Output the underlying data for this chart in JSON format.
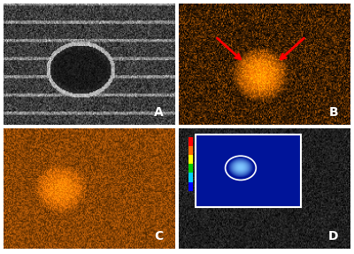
{
  "figure_width": 4.0,
  "figure_height": 2.87,
  "dpi": 100,
  "background_color": "#ffffff",
  "panels": [
    "A",
    "B",
    "C",
    "D"
  ],
  "grid_color": "#ffffff"
}
